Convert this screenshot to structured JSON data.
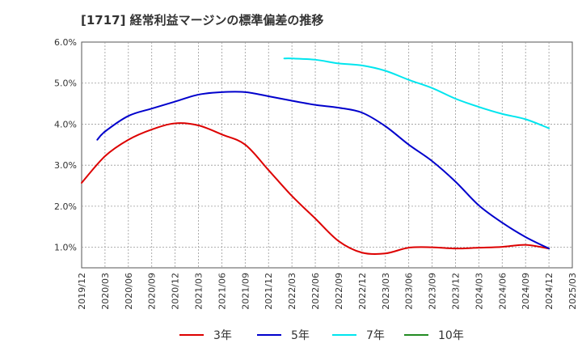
{
  "chart_data": {
    "type": "line",
    "title": "[1717]  経常利益マージンの標準偏差の推移",
    "ylim": [
      0.5,
      6.0
    ],
    "y_ticks": [
      "1.0%",
      "2.0%",
      "3.0%",
      "4.0%",
      "5.0%",
      "6.0%"
    ],
    "x_ticks": [
      "2019/12",
      "2020/03",
      "2020/06",
      "2020/09",
      "2020/12",
      "2021/03",
      "2021/06",
      "2021/09",
      "2021/12",
      "2022/03",
      "2022/06",
      "2022/09",
      "2022/12",
      "2023/03",
      "2023/06",
      "2023/09",
      "2023/12",
      "2024/03",
      "2024/06",
      "2024/09",
      "2024/12",
      "2025/03"
    ],
    "grid": true,
    "legend_position": "bottom",
    "series": [
      {
        "name": "3年",
        "color": "#dd0000",
        "points": [
          [
            0,
            2.57
          ],
          [
            1,
            3.22
          ],
          [
            2,
            3.62
          ],
          [
            3,
            3.87
          ],
          [
            4,
            4.02
          ],
          [
            5,
            3.97
          ],
          [
            6,
            3.75
          ],
          [
            7,
            3.5
          ],
          [
            8,
            2.88
          ],
          [
            9,
            2.25
          ],
          [
            10,
            1.7
          ],
          [
            11,
            1.15
          ],
          [
            12,
            0.87
          ],
          [
            13,
            0.85
          ],
          [
            14,
            0.99
          ],
          [
            15,
            1.0
          ],
          [
            16,
            0.97
          ],
          [
            17,
            0.99
          ],
          [
            18,
            1.01
          ],
          [
            19,
            1.06
          ],
          [
            20,
            0.97
          ]
        ]
      },
      {
        "name": "5年",
        "color": "#0000cc",
        "points": [
          [
            0.67,
            3.62
          ],
          [
            1,
            3.82
          ],
          [
            2,
            4.2
          ],
          [
            3,
            4.38
          ],
          [
            4,
            4.55
          ],
          [
            5,
            4.72
          ],
          [
            6,
            4.78
          ],
          [
            7,
            4.78
          ],
          [
            8,
            4.68
          ],
          [
            9,
            4.57
          ],
          [
            10,
            4.47
          ],
          [
            11,
            4.4
          ],
          [
            12,
            4.28
          ],
          [
            13,
            3.95
          ],
          [
            14,
            3.5
          ],
          [
            15,
            3.1
          ],
          [
            16,
            2.6
          ],
          [
            17,
            2.02
          ],
          [
            18,
            1.6
          ],
          [
            19,
            1.25
          ],
          [
            20,
            0.97
          ]
        ]
      },
      {
        "name": "7年",
        "color": "#00e5ee",
        "points": [
          [
            8.67,
            5.6
          ],
          [
            9,
            5.6
          ],
          [
            10,
            5.57
          ],
          [
            11,
            5.48
          ],
          [
            12,
            5.43
          ],
          [
            13,
            5.3
          ],
          [
            14,
            5.08
          ],
          [
            15,
            4.88
          ],
          [
            16,
            4.62
          ],
          [
            17,
            4.42
          ],
          [
            18,
            4.25
          ],
          [
            19,
            4.12
          ],
          [
            20,
            3.9
          ]
        ]
      },
      {
        "name": "10年",
        "color": "#228b22",
        "points": []
      }
    ]
  }
}
